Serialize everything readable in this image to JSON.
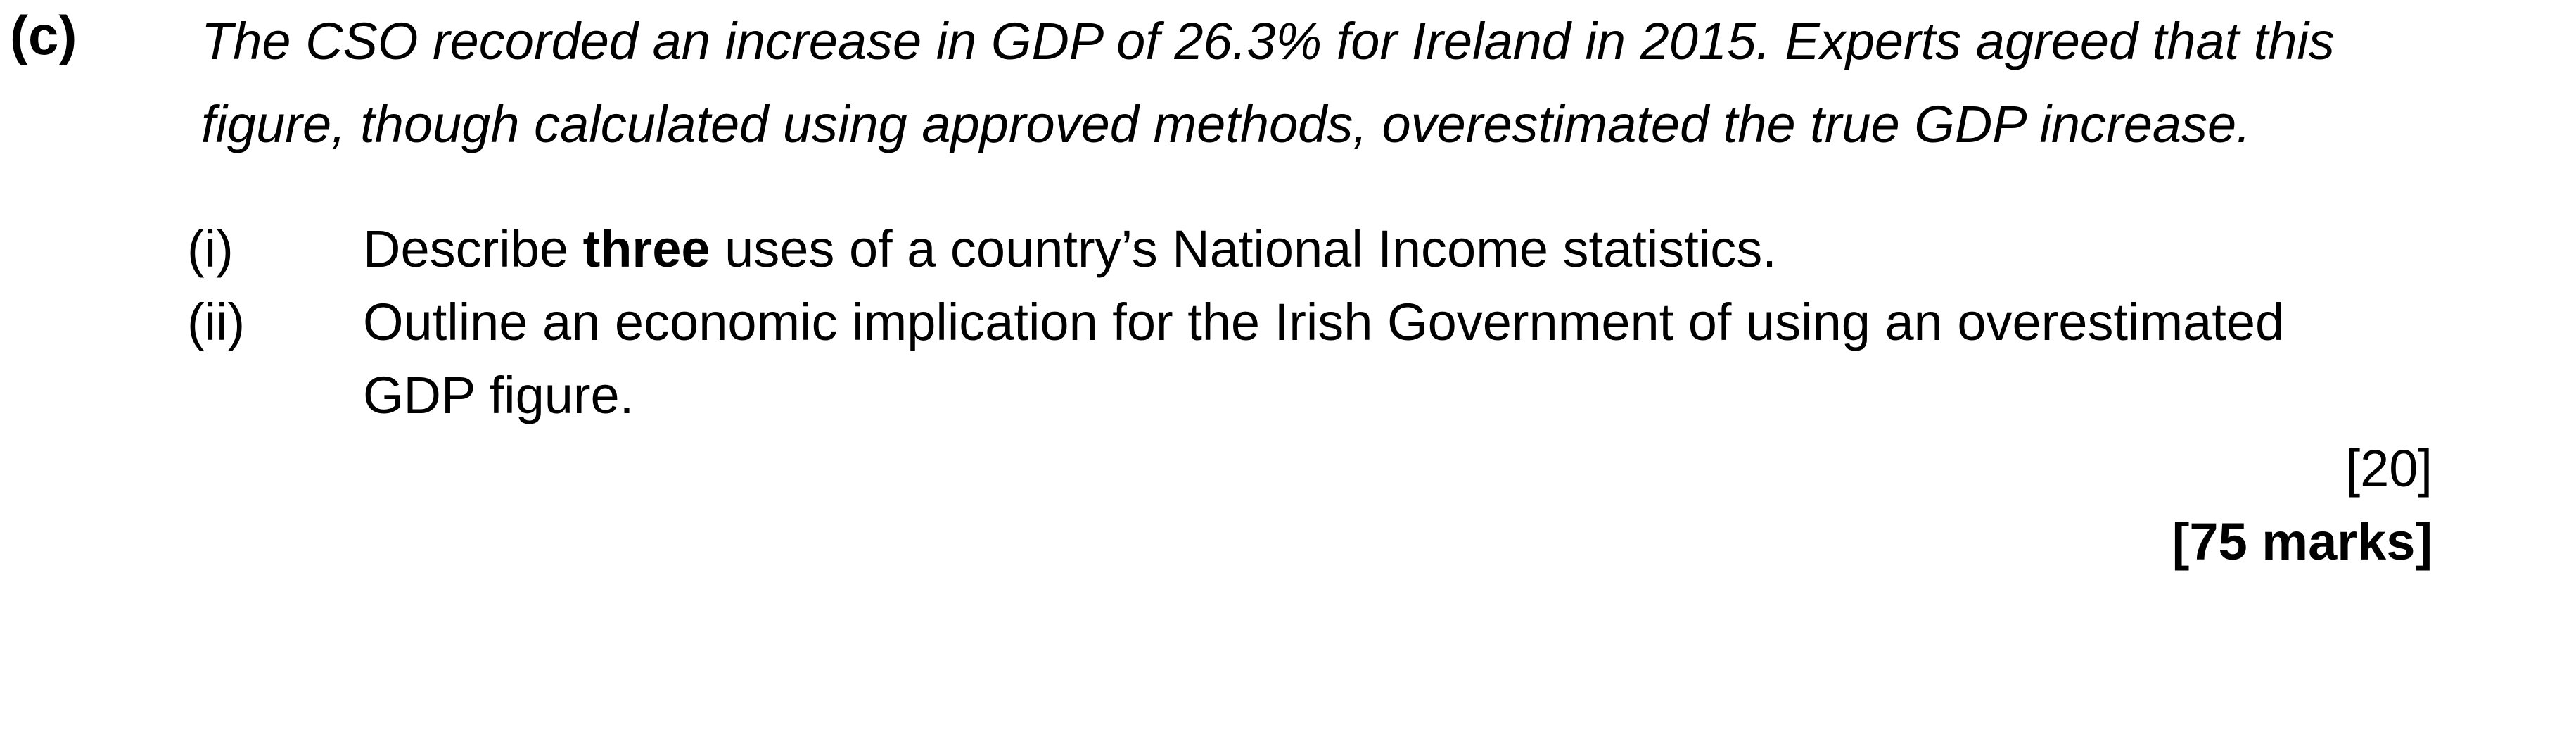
{
  "question": {
    "label": "(c)",
    "stem_line_1": "The CSO recorded an increase in GDP of 26.3% for Ireland in 2015. Experts agreed that this",
    "stem_line_2": "figure, though calculated using approved methods, overestimated the true GDP increase."
  },
  "parts": [
    {
      "numeral": "(i)",
      "text_before": "Describe ",
      "text_bold": "three",
      "text_after": " uses of a country’s National Income statistics."
    },
    {
      "numeral": "(ii)",
      "text_line_1": "Outline an economic implication for the Irish Government of using an overestimated",
      "text_line_2": "GDP figure."
    }
  ],
  "marks": {
    "part": "[20]",
    "total": "[75 marks]"
  }
}
